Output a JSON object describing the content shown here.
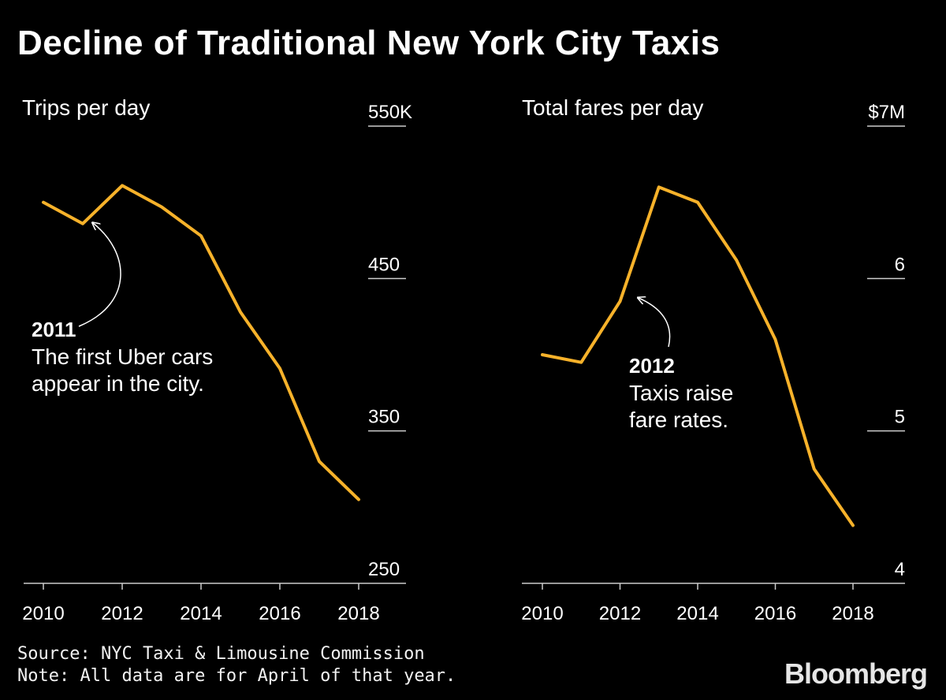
{
  "title": "Decline of Traditional New York City Taxis",
  "colors": {
    "line": "#F7B22A",
    "background": "#000000",
    "text": "#FFFFFF",
    "axis": "#CCCCCC"
  },
  "chart_data": [
    {
      "type": "line",
      "title": "Trips per day",
      "x": [
        2010,
        2011,
        2012,
        2013,
        2014,
        2015,
        2016,
        2017,
        2018
      ],
      "values": [
        500,
        486,
        511,
        497,
        478,
        428,
        391,
        330,
        305
      ],
      "ylim": [
        250,
        550
      ],
      "yticks": [
        550,
        450,
        350,
        250
      ],
      "ytick_labels": [
        "550K",
        "450",
        "350",
        "250"
      ],
      "xticks": [
        2010,
        2012,
        2014,
        2016,
        2018
      ],
      "xtick_labels": [
        "2010",
        "2012",
        "2014",
        "2016",
        "2018"
      ],
      "annotation": {
        "year": "2011",
        "text": [
          "The first Uber cars",
          "appear in the city."
        ],
        "x": 2011,
        "y": 486
      }
    },
    {
      "type": "line",
      "title": "Total fares per day",
      "x": [
        2010,
        2011,
        2012,
        2013,
        2014,
        2015,
        2016,
        2017,
        2018
      ],
      "values": [
        5.5,
        5.45,
        5.85,
        6.6,
        6.5,
        6.12,
        5.6,
        4.75,
        4.38
      ],
      "ylim": [
        4,
        7
      ],
      "yticks": [
        7,
        6,
        5,
        4
      ],
      "ytick_labels": [
        "$7M",
        "6",
        "5",
        "4"
      ],
      "xticks": [
        2010,
        2012,
        2014,
        2016,
        2018
      ],
      "xtick_labels": [
        "2010",
        "2012",
        "2014",
        "2016",
        "2018"
      ],
      "annotation": {
        "year": "2012",
        "text": [
          "Taxis raise",
          "fare rates."
        ],
        "x": 2012,
        "y": 5.85
      }
    }
  ],
  "footer": {
    "source": "Source: NYC Taxi & Limousine Commission",
    "note": "Note: All data are for April of that year."
  },
  "logo": "Bloomberg"
}
